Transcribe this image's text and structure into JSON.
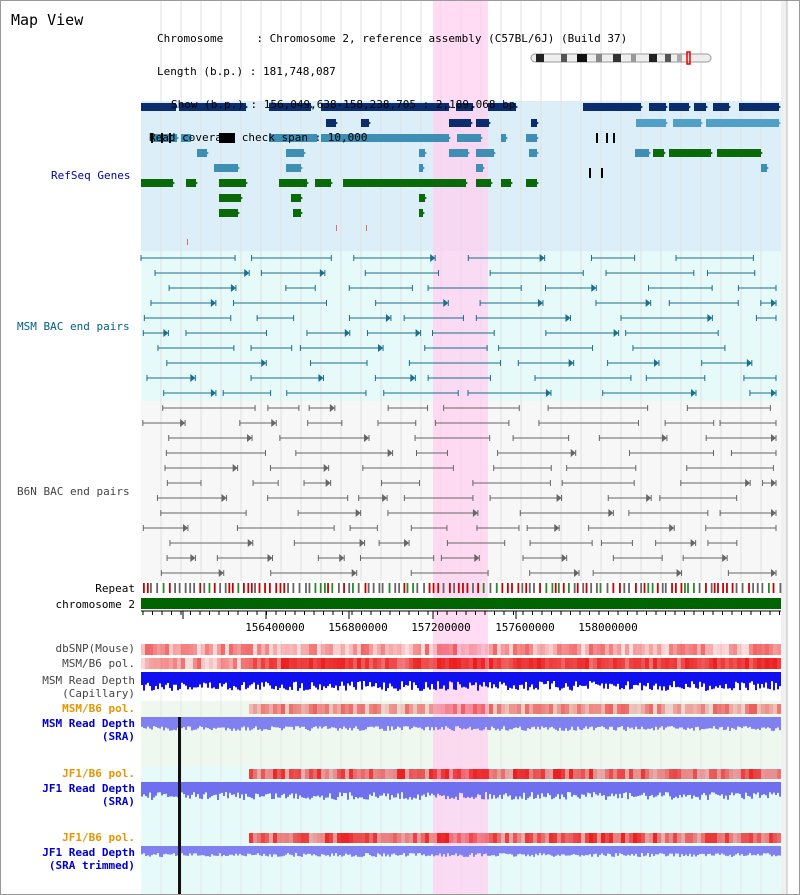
{
  "title": "Map View",
  "info": {
    "chromosome": "Chromosome     : Chromosome 2, reference assembly (C57BL/6J) (Build 37)",
    "length": "Length (b.p.) : 181,748,087",
    "show": "Show (b.p.) : 156,049,638-158,238,705 : 2,189,068 bp",
    "coverage": "Read coverage check span : 10,000"
  },
  "tracks": {
    "refseq": "RefSeq Genes",
    "msm_bac": "MSM BAC end pairs",
    "b6n_bac": "B6N BAC end pairs",
    "repeat": "Repeat",
    "chromosome": "chromosome 2",
    "dbsnp": "dbSNP(Mouse)",
    "msm_b6_pol": "MSM/B6 pol.",
    "msm_depth_cap_1": "MSM Read Depth",
    "msm_depth_cap_2": "(Capillary)",
    "msm_b6_pol_2": "MSM/B6 pol.",
    "msm_depth_sra_1": "MSM Read Depth",
    "msm_depth_sra_2": "(SRA)",
    "jf1_b6_pol": "JF1/B6 pol.",
    "jf1_depth_sra_1": "JF1 Read Depth",
    "jf1_depth_sra_2": "(SRA)",
    "jf1_b6_pol_2": "JF1/B6 pol.",
    "jf1_depth_trim_1": "JF1 Read Depth",
    "jf1_depth_trim_2": "(SRA trimmed)"
  },
  "axis_ticks": [
    "156400000",
    "156800000",
    "157200000",
    "157600000",
    "158000000"
  ],
  "colors": {
    "refseq_label": "#0000aa",
    "msm_label": "#006080",
    "b6n_label": "#444444",
    "orange_label": "#e69500",
    "blue_label": "#0000cc",
    "highlight": "#ffd0f0",
    "gene_dark": "#0b2d6e",
    "gene_mid": "#3f8fb5",
    "gene_light": "#4f9fc8",
    "gene_green": "#0a6a0a",
    "chromosome_bar": "#006400"
  }
}
